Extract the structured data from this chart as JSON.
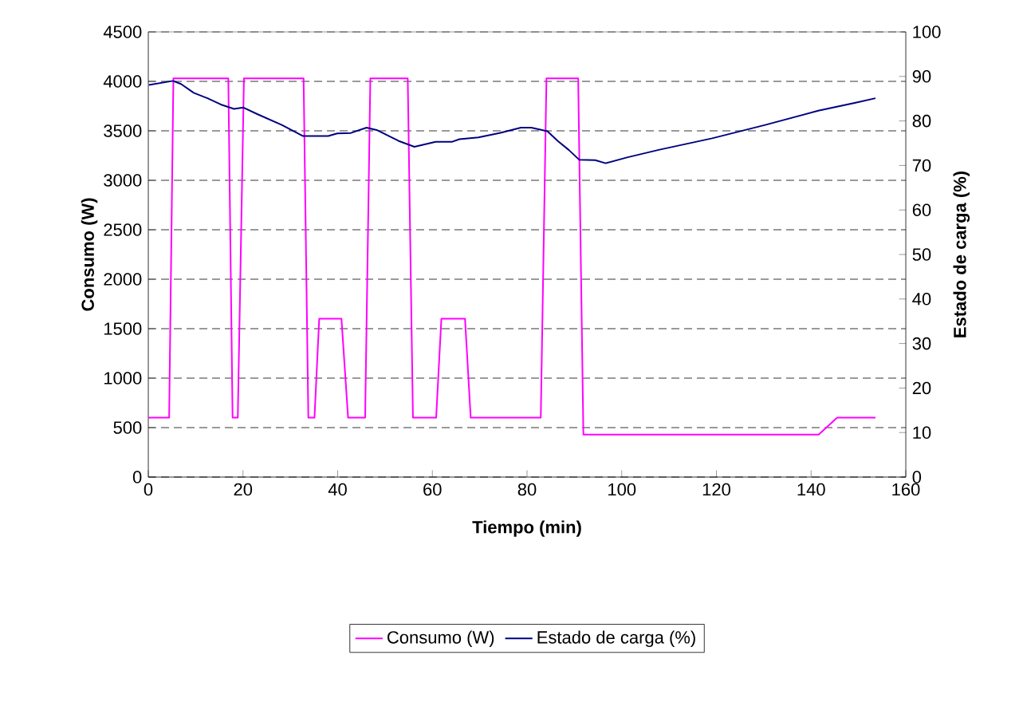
{
  "chart_data": {
    "type": "line",
    "xlabel": "Tiempo (min)",
    "ylabel": "Consumo (W)",
    "y2label": "Estado de carga (%)",
    "xlim": [
      0,
      160
    ],
    "xticks": [
      0,
      20,
      40,
      60,
      80,
      100,
      120,
      140,
      160
    ],
    "ylim": [
      0,
      4500
    ],
    "yticks": [
      0,
      500,
      1000,
      1500,
      2000,
      2500,
      3000,
      3500,
      4000,
      4500
    ],
    "y2lim": [
      0,
      100
    ],
    "y2ticks": [
      0,
      10,
      20,
      30,
      40,
      50,
      60,
      70,
      80,
      90,
      100
    ],
    "grid": "y",
    "legend": "bottom",
    "marker": "none",
    "line_style": "solid",
    "series": [
      {
        "name": "Consumo (W)",
        "color": "#ff00ff",
        "x": [
          0,
          4.4,
          5.3,
          16.9,
          17.8,
          18.9,
          20.2,
          32.8,
          33.8,
          35.1,
          36.1,
          40.8,
          42.2,
          45.8,
          46.9,
          54.8,
          55.9,
          60.8,
          61.9,
          66.9,
          68.1,
          82.9,
          84.1,
          90.8,
          91.9,
          141.6,
          145.5,
          153.6
        ],
        "values": [
          600,
          600,
          4030,
          4030,
          600,
          600,
          4030,
          4030,
          600,
          600,
          1600,
          1600,
          600,
          600,
          4030,
          4030,
          600,
          600,
          1600,
          1600,
          600,
          600,
          4030,
          4030,
          430,
          430,
          600,
          600
        ]
      },
      {
        "name": "Estado de carga (%)",
        "color": "#000080",
        "axis": "y2",
        "x": [
          0.1,
          5.2,
          6.9,
          9.6,
          12.5,
          15.3,
          18.1,
          20.1,
          23.1,
          28.2,
          32.7,
          38.0,
          39.9,
          42.8,
          46.1,
          48.4,
          52.9,
          56.2,
          60.7,
          64.1,
          65.7,
          69.7,
          74.2,
          78.7,
          80.9,
          84.3,
          86.5,
          88.8,
          91.0,
          94.4,
          96.6,
          101.1,
          107.8,
          119.1,
          130.3,
          141.5,
          149.4,
          153.6
        ],
        "values": [
          88.1,
          89.0,
          88.3,
          86.3,
          85.1,
          83.7,
          82.7,
          83.0,
          81.5,
          79.1,
          76.6,
          76.6,
          77.2,
          77.3,
          78.5,
          77.9,
          75.5,
          74.2,
          75.3,
          75.3,
          75.9,
          76.3,
          77.3,
          78.5,
          78.5,
          77.7,
          75.5,
          73.5,
          71.3,
          71.2,
          70.5,
          71.8,
          73.5,
          76.1,
          79.1,
          82.3,
          84.1,
          85.1
        ]
      }
    ]
  }
}
